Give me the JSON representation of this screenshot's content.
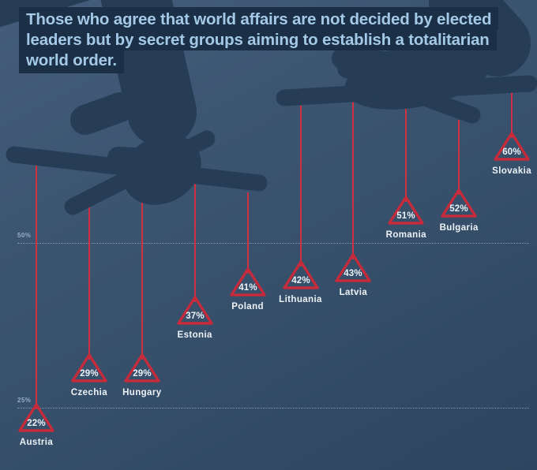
{
  "title": {
    "lines": [
      "Those who agree that world affairs are not decided by elected",
      "leaders but by secret groups aiming to establish a totalitarian",
      "world order."
    ],
    "full": "Those who agree that world affairs are not decided by elected leaders but by secret groups aiming to establish a totalitarian world order."
  },
  "axis": {
    "gridlines": [
      {
        "label": "50%",
        "value": 50
      },
      {
        "label": "25%",
        "value": 25
      }
    ]
  },
  "chart_data": {
    "type": "scatter",
    "marker_style": "red outlined triangles hanging from puppet strings",
    "title": "Those who agree that world affairs are not decided by elected leaders but by secret groups aiming to establish a totalitarian world order.",
    "categories": [
      "Austria",
      "Czechia",
      "Hungary",
      "Estonia",
      "Poland",
      "Lithuania",
      "Latvia",
      "Romania",
      "Bulgaria",
      "Slovakia"
    ],
    "values": [
      22,
      29,
      29,
      37,
      41,
      42,
      43,
      51,
      52,
      60
    ],
    "value_labels": [
      "22%",
      "29%",
      "29%",
      "37%",
      "41%",
      "42%",
      "43%",
      "51%",
      "52%",
      "60%"
    ],
    "unit": "%",
    "ylim": [
      0,
      100
    ],
    "gridlines": [
      25,
      50
    ],
    "sort_order": "ascending",
    "legend": "none"
  },
  "illustration": {
    "left_hand": "dark silhouette hand holding crossed marionette control bars",
    "right_hand": "dark silhouette hand holding crossed marionette control bars"
  },
  "colors": {
    "background": "#37506b",
    "silhouette": "#273d56",
    "title_box": "#1b2f47",
    "title_text": "#a3c9e6",
    "red": "#c52b3b",
    "string_red": "#ce3240",
    "label_text": "#edf2f7"
  }
}
